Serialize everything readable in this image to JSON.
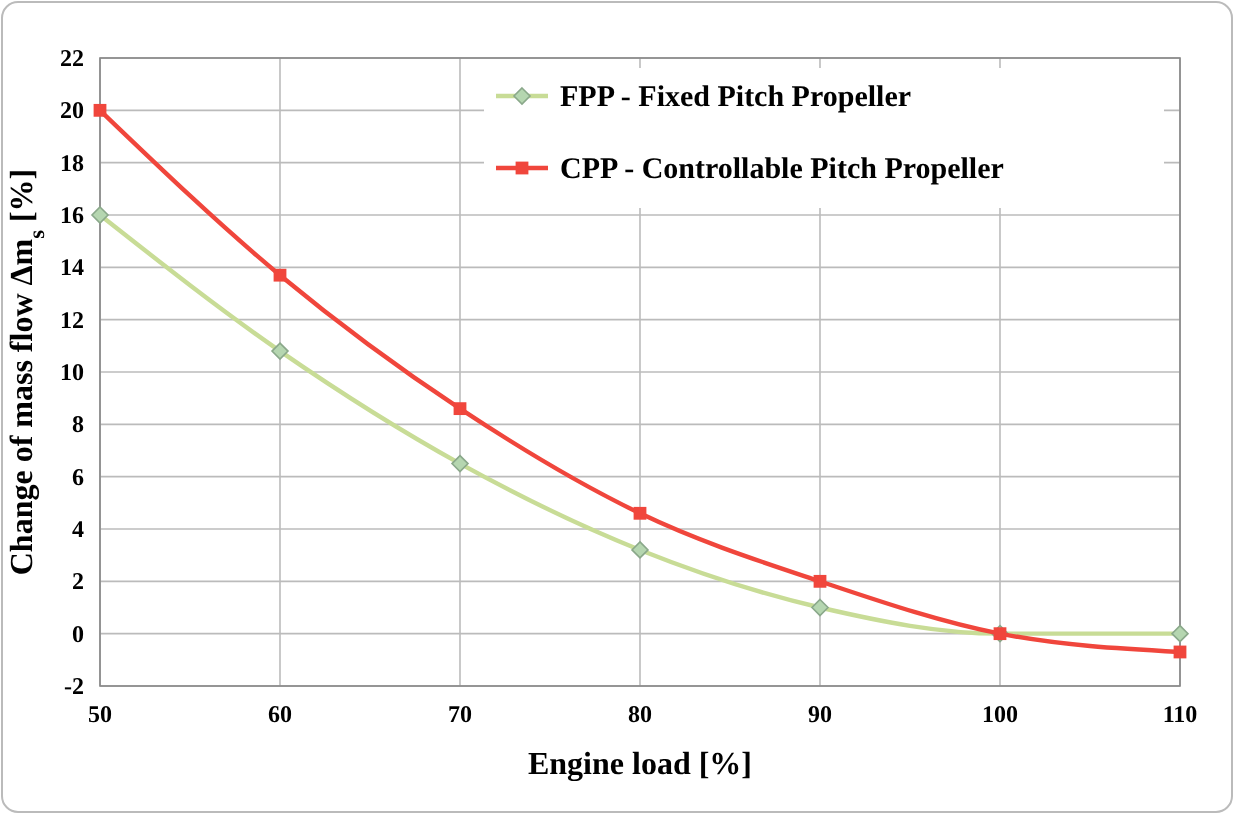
{
  "chart_data": {
    "type": "line",
    "xlabel": "Engine load [%]",
    "ylabel": "Change of mass flow Δm$_{s}$ [%]",
    "x": [
      50,
      60,
      70,
      80,
      90,
      100,
      110
    ],
    "xlim": [
      50,
      110
    ],
    "xticks": [
      50,
      60,
      70,
      80,
      90,
      100,
      110
    ],
    "ylim": [
      -2,
      22
    ],
    "yticks": [
      -2,
      0,
      2,
      4,
      6,
      8,
      10,
      12,
      14,
      16,
      18,
      20,
      22
    ],
    "grid": true,
    "legend": "top right",
    "series": [
      {
        "name": "FPP - Fixed Pitch Propeller",
        "color": "#c8dc96",
        "marker": "diamond",
        "values": [
          16,
          10.8,
          6.5,
          3.2,
          1.0,
          0,
          0
        ]
      },
      {
        "name": "CPP - Controllable Pitch Propeller",
        "color": "#f0463c",
        "marker": "square",
        "values": [
          20,
          13.7,
          8.6,
          4.6,
          2.0,
          0,
          -0.7
        ]
      }
    ]
  }
}
